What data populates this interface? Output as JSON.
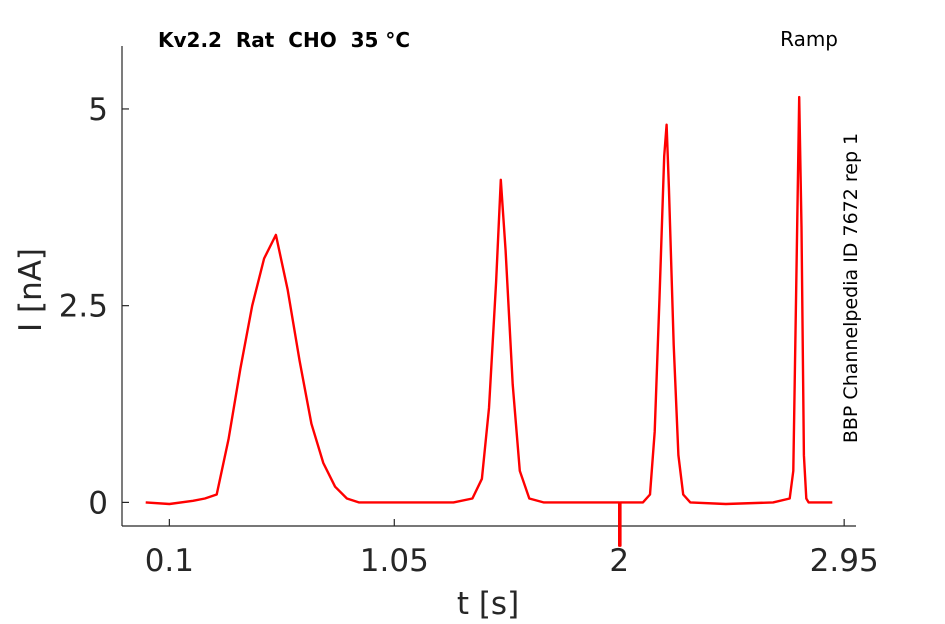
{
  "chart_data": {
    "type": "line",
    "title": "Kv2.2  Rat  CHO  35 °C",
    "protocol_label": "Ramp",
    "side_label": "BBP Channelpedia ID 7672 rep 1",
    "xlabel": "t [s]",
    "ylabel": "I [nA]",
    "xlim": [
      -0.1,
      3.0
    ],
    "ylim": [
      -0.3,
      5.8
    ],
    "xticks": [
      {
        "value": 0.1,
        "label": "0.1"
      },
      {
        "value": 1.05,
        "label": "1.05"
      },
      {
        "value": 2,
        "label": "2"
      },
      {
        "value": 2.95,
        "label": "2.95"
      }
    ],
    "yticks": [
      {
        "value": 0,
        "label": "0"
      },
      {
        "value": 2.5,
        "label": "2.5"
      },
      {
        "value": 5,
        "label": "5"
      }
    ],
    "grid": false,
    "series": [
      {
        "color": "#ff0000",
        "x": [
          0.0,
          0.1,
          0.2,
          0.25,
          0.3,
          0.35,
          0.4,
          0.45,
          0.5,
          0.55,
          0.6,
          0.65,
          0.7,
          0.75,
          0.8,
          0.85,
          0.9,
          1.0,
          1.2,
          1.3,
          1.38,
          1.42,
          1.45,
          1.48,
          1.5,
          1.52,
          1.55,
          1.58,
          1.62,
          1.68,
          1.8,
          1.9,
          2.0,
          2.0,
          2.005,
          2.005,
          2.1,
          2.13,
          2.15,
          2.17,
          2.19,
          2.2,
          2.21,
          2.23,
          2.25,
          2.27,
          2.3,
          2.45,
          2.65,
          2.72,
          2.735,
          2.75,
          2.76,
          2.77,
          2.78,
          2.79,
          2.8,
          2.82,
          2.9
        ],
        "y": [
          0.0,
          -0.02,
          0.02,
          0.05,
          0.1,
          0.8,
          1.7,
          2.5,
          3.1,
          3.4,
          2.7,
          1.8,
          1.0,
          0.5,
          0.2,
          0.05,
          0.0,
          0.0,
          0.0,
          0.0,
          0.05,
          0.3,
          1.2,
          2.8,
          4.1,
          3.2,
          1.5,
          0.4,
          0.05,
          0.0,
          0.0,
          0.0,
          0.0,
          -0.55,
          -0.55,
          0.0,
          0.0,
          0.1,
          0.9,
          2.6,
          4.4,
          4.8,
          4.0,
          2.0,
          0.6,
          0.1,
          0.0,
          -0.02,
          0.0,
          0.05,
          0.4,
          3.2,
          5.15,
          3.5,
          0.6,
          0.05,
          0.0,
          0.0,
          0.0
        ]
      }
    ]
  }
}
